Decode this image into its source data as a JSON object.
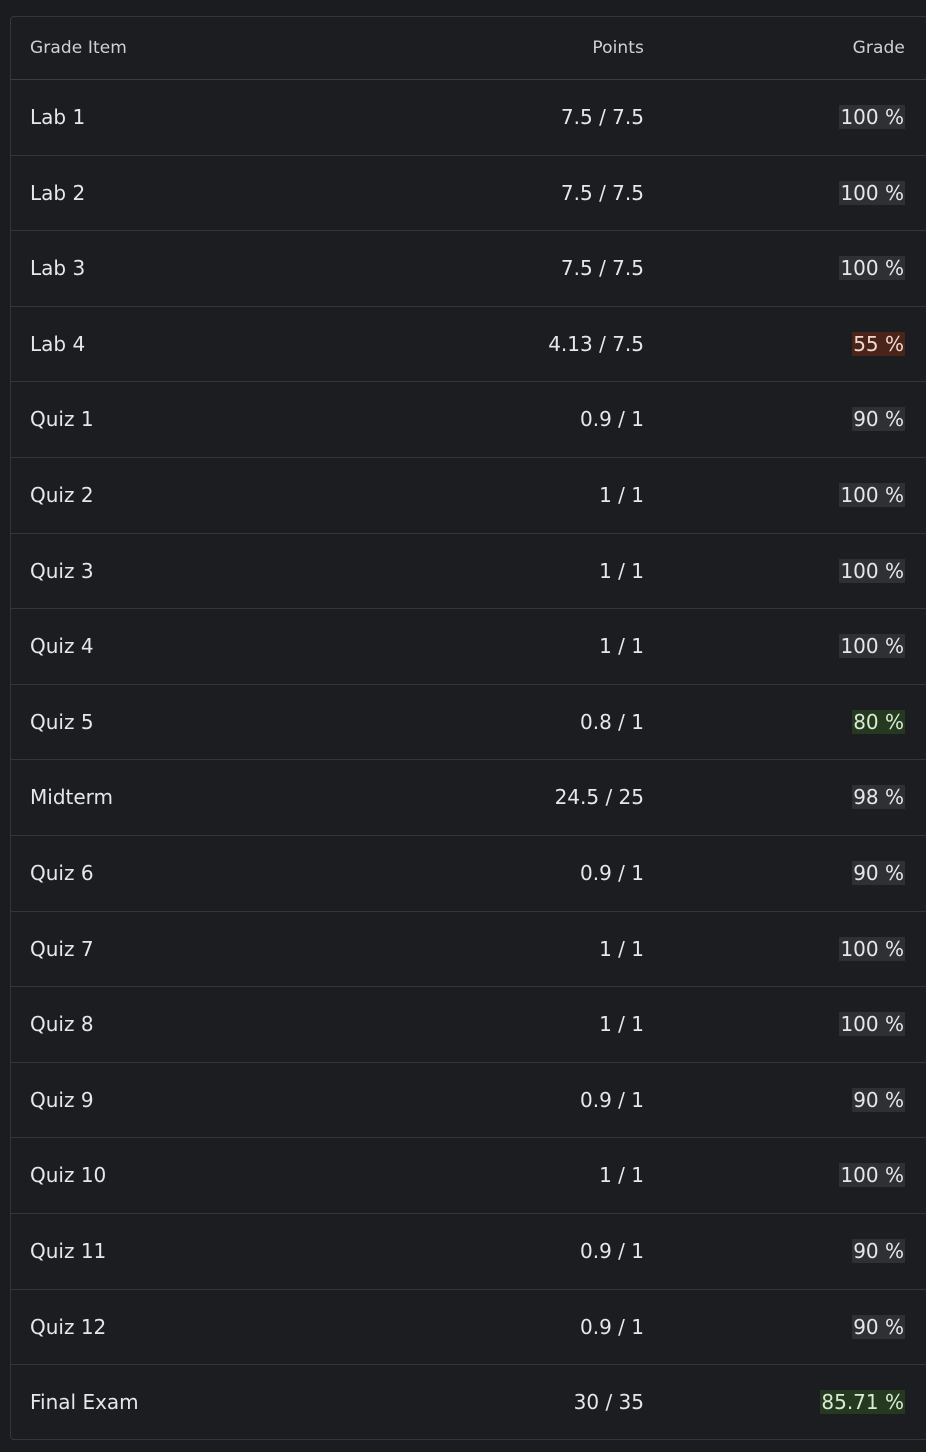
{
  "table": {
    "headers": {
      "item": "Grade Item",
      "points": "Points",
      "grade": "Grade"
    },
    "rows": [
      {
        "item": "Lab 1",
        "points": "7.5 / 7.5",
        "grade": "100 %",
        "status": "neutral"
      },
      {
        "item": "Lab 2",
        "points": "7.5 / 7.5",
        "grade": "100 %",
        "status": "neutral"
      },
      {
        "item": "Lab 3",
        "points": "7.5 / 7.5",
        "grade": "100 %",
        "status": "neutral"
      },
      {
        "item": "Lab 4",
        "points": "4.13 / 7.5",
        "grade": "55 %",
        "status": "red"
      },
      {
        "item": "Quiz 1",
        "points": "0.9 / 1",
        "grade": "90 %",
        "status": "neutral"
      },
      {
        "item": "Quiz 2",
        "points": "1 / 1",
        "grade": "100 %",
        "status": "neutral"
      },
      {
        "item": "Quiz 3",
        "points": "1 / 1",
        "grade": "100 %",
        "status": "neutral"
      },
      {
        "item": "Quiz 4",
        "points": "1 / 1",
        "grade": "100 %",
        "status": "neutral"
      },
      {
        "item": "Quiz 5",
        "points": "0.8 / 1",
        "grade": "80 %",
        "status": "green"
      },
      {
        "item": "Midterm",
        "points": "24.5 / 25",
        "grade": "98 %",
        "status": "neutral"
      },
      {
        "item": "Quiz 6",
        "points": "0.9 / 1",
        "grade": "90 %",
        "status": "neutral"
      },
      {
        "item": "Quiz 7",
        "points": "1 / 1",
        "grade": "100 %",
        "status": "neutral"
      },
      {
        "item": "Quiz 8",
        "points": "1 / 1",
        "grade": "100 %",
        "status": "neutral"
      },
      {
        "item": "Quiz 9",
        "points": "0.9 / 1",
        "grade": "90 %",
        "status": "neutral"
      },
      {
        "item": "Quiz 10",
        "points": "1 / 1",
        "grade": "100 %",
        "status": "neutral"
      },
      {
        "item": "Quiz 11",
        "points": "0.9 / 1",
        "grade": "90 %",
        "status": "neutral"
      },
      {
        "item": "Quiz 12",
        "points": "0.9 / 1",
        "grade": "90 %",
        "status": "neutral"
      },
      {
        "item": "Final Exam",
        "points": "30 / 35",
        "grade": "85.71 %",
        "status": "green"
      }
    ]
  },
  "colors": {
    "background": "#1b1c1f",
    "badge_neutral": "#2e3033",
    "badge_red": "#4a2418",
    "badge_green": "#24391f"
  }
}
